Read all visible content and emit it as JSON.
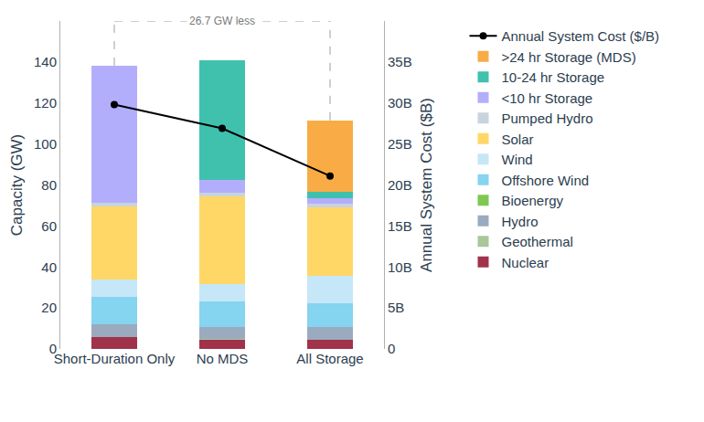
{
  "chart_data": {
    "type": "bar",
    "stacked": true,
    "categories": [
      "Short-Duration Only",
      "No MDS",
      "All Storage"
    ],
    "ylabel": "Capacity (GW)",
    "y2label": "Annual System Cost ($B)",
    "ylim": [
      0,
      160
    ],
    "yticks": [
      0,
      20,
      40,
      60,
      80,
      100,
      120,
      140
    ],
    "y2lim": [
      0,
      40
    ],
    "y2ticks": [
      0,
      {
        "value": 5,
        "label": "5B"
      },
      {
        "value": 10,
        "label": "10B"
      },
      {
        "value": 15,
        "label": "15B"
      },
      {
        "value": 20,
        "label": "20B"
      },
      {
        "value": 25,
        "label": "25B"
      },
      {
        "value": 30,
        "label": "30B"
      },
      {
        "value": 35,
        "label": "35B"
      }
    ],
    "grid": false,
    "legend": "right",
    "annotation": "26.7 GW less",
    "series": [
      {
        "name": "Annual System Cost ($/B)",
        "type": "line",
        "axis": "y2",
        "color": "#000000",
        "marker": "circle",
        "line_style": "solid",
        "values": [
          29.8,
          26.9,
          21.1
        ]
      },
      {
        "name": ">24 hr Storage (MDS)",
        "type": "bar",
        "color": "#f9ac45",
        "values": [
          0,
          0,
          34.7
        ]
      },
      {
        "name": "10-24 hr Storage",
        "type": "bar",
        "color": "#3fc1ae",
        "values": [
          0,
          58.4,
          3.3
        ]
      },
      {
        "name": "<10 hr Storage",
        "type": "bar",
        "color": "#b3aefc",
        "values": [
          66.9,
          6.2,
          2.5
        ]
      },
      {
        "name": "Pumped Hydro",
        "type": "bar",
        "color": "#c9d3de",
        "values": [
          1.8,
          1.8,
          1.8
        ]
      },
      {
        "name": "Solar",
        "type": "bar",
        "color": "#fed766",
        "values": [
          35.6,
          42.8,
          33.5
        ]
      },
      {
        "name": "Wind",
        "type": "bar",
        "color": "#c6e7f7",
        "values": [
          8.5,
          8.5,
          13.4
        ]
      },
      {
        "name": "Offshore Wind",
        "type": "bar",
        "color": "#85d4f0",
        "values": [
          13.4,
          12.4,
          11.5
        ]
      },
      {
        "name": "Bioenergy",
        "type": "bar",
        "color": "#7ec850",
        "values": [
          0,
          0,
          0.3
        ]
      },
      {
        "name": "Hydro",
        "type": "bar",
        "color": "#9aabc0",
        "values": [
          6.2,
          5.8,
          6.0
        ]
      },
      {
        "name": "Geothermal",
        "type": "bar",
        "color": "#a9c79a",
        "values": [
          0,
          0.3,
          0.2
        ]
      },
      {
        "name": "Nuclear",
        "type": "bar",
        "color": "#a0334a",
        "values": [
          5.8,
          4.5,
          4.3
        ]
      }
    ]
  }
}
